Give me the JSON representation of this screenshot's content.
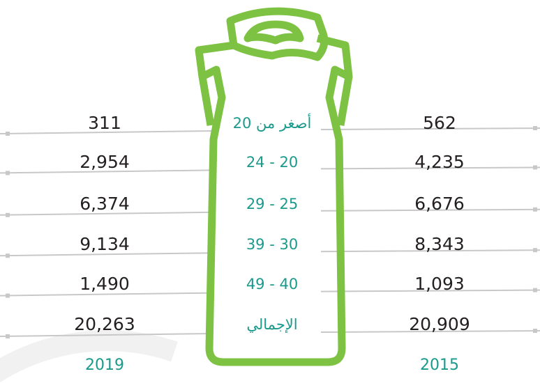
{
  "years": {
    "left": "2019",
    "right": "2015"
  },
  "rows": [
    {
      "label": "أصغر من 20",
      "left": "311",
      "right": "562"
    },
    {
      "label": "24 - 20",
      "left": "2,954",
      "right": "4,235"
    },
    {
      "label": "29 - 25",
      "left": "6,374",
      "right": "6,676"
    },
    {
      "label": "39 - 30",
      "left": "9,134",
      "right": "8,343"
    },
    {
      "label": "49 - 40",
      "left": "1,490",
      "right": "1,093"
    },
    {
      "label": "الإجمالي",
      "left": "20,263",
      "right": "20,909"
    }
  ]
}
